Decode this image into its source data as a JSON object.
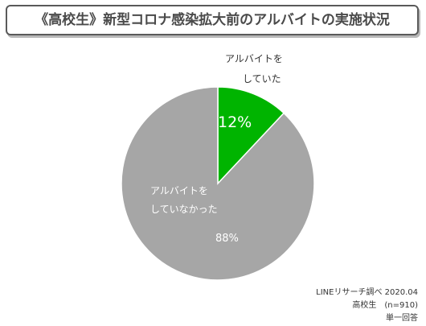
{
  "title": "《高校生》新型コロナ感染拡大前のアルバイトの実施状況",
  "chart_data": {
    "type": "pie",
    "start_angle_deg": 0,
    "direction": "clockwise",
    "slices": [
      {
        "label_lines": [
          "アルバイトを",
          "していた"
        ],
        "value": 12,
        "value_label": "12%",
        "color": "#00b400"
      },
      {
        "label_lines": [
          "アルバイトを",
          "していなかった"
        ],
        "value": 88,
        "value_label": "88%",
        "color": "#a6a6a6"
      }
    ]
  },
  "source": {
    "line1": "LINEリサーチ調べ 2020.04",
    "line2": "高校生　(n=910)",
    "line3": "単一回答"
  }
}
